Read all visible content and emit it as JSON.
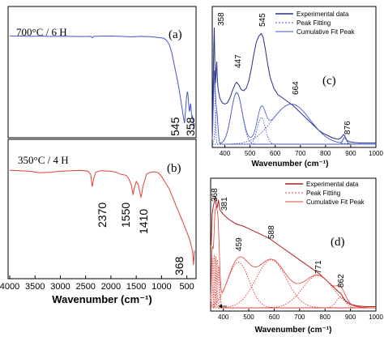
{
  "colors": {
    "blue": "#4455c8",
    "blue_dark": "#26308a",
    "red": "#e0403a",
    "red_dark": "#a82020",
    "axis": "#000000"
  },
  "chart_data": [
    {
      "id": "a",
      "type": "line",
      "panel_label": "(a)",
      "annotation": "700°C / 6 H",
      "peaks": [
        {
          "x": 545,
          "label": "545"
        },
        {
          "x": 358,
          "label": "358"
        }
      ],
      "series": [
        {
          "color": "#4455c8",
          "x": [
            4000,
            3900,
            3800,
            3600,
            3400,
            3200,
            3000,
            2800,
            2600,
            2400,
            2370,
            2340,
            2200,
            2000,
            1800,
            1600,
            1400,
            1200,
            1100,
            1000,
            950,
            900,
            850,
            800,
            760,
            720,
            680,
            640,
            600,
            570,
            545,
            525,
            505,
            490,
            480,
            470,
            460,
            450,
            440,
            430,
            420,
            410,
            400,
            390,
            380,
            370,
            358,
            350
          ],
          "y": [
            96.5,
            96.2,
            96.4,
            96.0,
            96.3,
            95.9,
            96.1,
            96.0,
            95.8,
            96.0,
            94.5,
            96.0,
            96.2,
            96.3,
            96.0,
            95.5,
            96.0,
            95.6,
            95.0,
            94.5,
            94.0,
            92.0,
            88.0,
            80.0,
            70.0,
            60.0,
            50.0,
            38.0,
            25.0,
            15.0,
            8.0,
            22.0,
            35.0,
            40.0,
            38.0,
            32.0,
            25.0,
            20.0,
            22.0,
            28.0,
            26.0,
            18.0,
            14.0,
            16.0,
            12.0,
            8.0,
            2.0,
            8.0
          ]
        }
      ]
    },
    {
      "id": "b",
      "type": "line",
      "panel_label": "(b)",
      "annotation": "350°C / 4 H",
      "xlabel": "Wavenumber (cm⁻¹)",
      "xlim": [
        4000,
        350
      ],
      "xticks": [
        4000,
        3500,
        3000,
        2500,
        2000,
        1500,
        1000,
        500
      ],
      "peaks": [
        {
          "x": 2370,
          "label": "2370"
        },
        {
          "x": 1550,
          "label": "1550"
        },
        {
          "x": 1410,
          "label": "1410"
        },
        {
          "x": 368,
          "label": "368"
        }
      ],
      "series": [
        {
          "color": "#e0403a",
          "x": [
            4000,
            3800,
            3600,
            3400,
            3200,
            3000,
            2800,
            2600,
            2450,
            2400,
            2370,
            2340,
            2300,
            2200,
            2000,
            1900,
            1800,
            1700,
            1650,
            1600,
            1560,
            1550,
            1530,
            1500,
            1460,
            1430,
            1410,
            1390,
            1370,
            1340,
            1300,
            1250,
            1200,
            1150,
            1100,
            1050,
            1000,
            950,
            900,
            850,
            800,
            750,
            700,
            650,
            600,
            550,
            500,
            470,
            440,
            420,
            400,
            385,
            375,
            368,
            360,
            350
          ],
          "y": [
            96.0,
            95.5,
            95.0,
            93.5,
            94.0,
            95.0,
            95.5,
            95.8,
            95.0,
            92.0,
            80.0,
            88.0,
            94.0,
            95.5,
            95.0,
            94.0,
            92.0,
            91.0,
            88.0,
            82.0,
            72.0,
            76.0,
            80.0,
            85.0,
            82.0,
            75.0,
            70.0,
            73.0,
            80.0,
            85.0,
            92.0,
            93.5,
            94.0,
            94.5,
            94.0,
            93.0,
            90.0,
            86.0,
            82.0,
            78.0,
            72.0,
            66.0,
            60.0,
            54.0,
            48.0,
            42.0,
            36.0,
            32.0,
            28.0,
            24.0,
            20.0,
            16.0,
            10.0,
            4.0,
            10.0,
            18.0
          ]
        }
      ]
    },
    {
      "id": "c",
      "type": "line",
      "panel_label": "(c)",
      "xlabel": "Wavenumber (cm⁻¹)",
      "xlim": [
        350,
        1000
      ],
      "xticks": [
        400,
        500,
        600,
        700,
        800,
        900,
        1000
      ],
      "legend": [
        "Experimental data",
        "Peak Fitting",
        "Cumulative Fit Peak"
      ],
      "legend_position": "top-right",
      "peaks": [
        {
          "x": 358,
          "label": "358"
        },
        {
          "x": 447,
          "label": "447"
        },
        {
          "x": 545,
          "label": "545"
        },
        {
          "x": 664,
          "label": "664"
        },
        {
          "x": 876,
          "label": "876"
        }
      ],
      "experimental": {
        "x": [
          350,
          353,
          356,
          358,
          360,
          363,
          366,
          368,
          370,
          373,
          376,
          380,
          390,
          400,
          410,
          420,
          430,
          440,
          447,
          455,
          465,
          475,
          485,
          495,
          505,
          515,
          525,
          535,
          545,
          552,
          560,
          570,
          580,
          595,
          610,
          630,
          650,
          670,
          690,
          710,
          730,
          750,
          770,
          790,
          810,
          830,
          850,
          860,
          868,
          872,
          876,
          880,
          885,
          895,
          910,
          930,
          950,
          970,
          1000
        ],
        "y": [
          5,
          40,
          80,
          96,
          70,
          50,
          62,
          68,
          55,
          46,
          42,
          38,
          34,
          33,
          34,
          38,
          44,
          49,
          51,
          49,
          45,
          44,
          46,
          52,
          62,
          74,
          84,
          89,
          91,
          88,
          79,
          66,
          55,
          46,
          41,
          38,
          35,
          32,
          28,
          24,
          20,
          16,
          12,
          9,
          7,
          5,
          4,
          5,
          7,
          8,
          7,
          5,
          3,
          2,
          1.5,
          1,
          1,
          1,
          1
        ]
      },
      "fit_peaks": [
        {
          "center": 358,
          "amp": 55,
          "width": 3.5
        },
        {
          "center": 367,
          "amp": 28,
          "width": 5
        },
        {
          "center": 447,
          "amp": 42,
          "width": 22
        },
        {
          "center": 545,
          "amp": 22,
          "width": 16
        },
        {
          "center": 664,
          "amp": 33,
          "width": 75
        },
        {
          "center": 876,
          "amp": 5,
          "width": 7
        }
      ]
    },
    {
      "id": "d",
      "type": "line",
      "panel_label": "(d)",
      "xlabel": "Wavenumber (cm⁻¹)",
      "xlim": [
        350,
        1000
      ],
      "xticks": [
        400,
        500,
        600,
        700,
        800,
        900,
        1000
      ],
      "legend": [
        "Experimental data",
        "Peak Fitting",
        "Cumulative Fit Peak"
      ],
      "legend_position": "top-right",
      "peaks": [
        {
          "x": 368,
          "label": "368"
        },
        {
          "x": 381,
          "label": "381"
        },
        {
          "x": 459,
          "label": "459"
        },
        {
          "x": 588,
          "label": "588"
        },
        {
          "x": 771,
          "label": "771"
        },
        {
          "x": 862,
          "label": "862"
        }
      ],
      "experimental": {
        "x": [
          352,
          356,
          360,
          364,
          368,
          372,
          376,
          381,
          386,
          392,
          400,
          410,
          420,
          435,
          450,
          465,
          480,
          500,
          520,
          540,
          560,
          580,
          600,
          620,
          640,
          660,
          680,
          700,
          720,
          740,
          760,
          780,
          800,
          820,
          840,
          855,
          862,
          870,
          880,
          900,
          930,
          960,
          1000
        ],
        "y": [
          52,
          78,
          84,
          88,
          93,
          86,
          84,
          90,
          82,
          80,
          78,
          76,
          74,
          72,
          70,
          69,
          68,
          66,
          64,
          62,
          60,
          58,
          55,
          52,
          49,
          46,
          43,
          40,
          37,
          34,
          31,
          28,
          24,
          20,
          16,
          13,
          12,
          9,
          6,
          3,
          1.5,
          1,
          1
        ]
      },
      "fit_peaks": [
        {
          "center": 356,
          "amp": 42,
          "width": 3
        },
        {
          "center": 364,
          "amp": 45,
          "width": 4
        },
        {
          "center": 370,
          "amp": 43,
          "width": 4
        },
        {
          "center": 376,
          "amp": 40,
          "width": 5
        },
        {
          "center": 381,
          "amp": 35,
          "width": 5
        },
        {
          "center": 459,
          "amp": 38,
          "width": 42
        },
        {
          "center": 588,
          "amp": 40,
          "width": 60
        },
        {
          "center": 771,
          "amp": 27,
          "width": 60
        },
        {
          "center": 862,
          "amp": 9,
          "width": 18
        }
      ]
    }
  ]
}
